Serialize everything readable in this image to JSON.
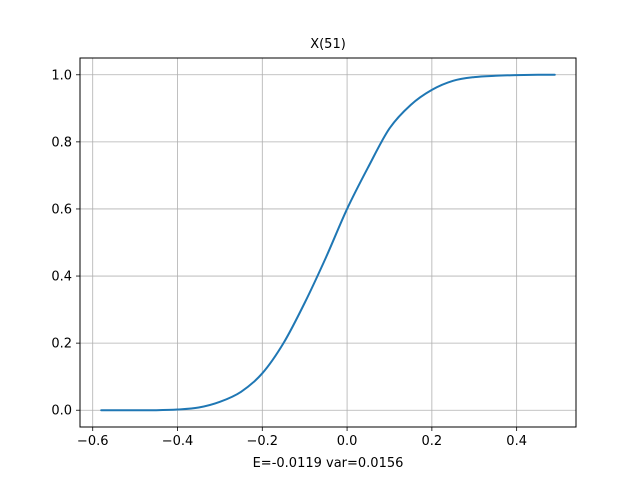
{
  "chart_data": {
    "type": "line",
    "title": "X(51)",
    "xlabel": "E=-0.0119 var=0.0156",
    "ylabel": "",
    "xlim": [
      -0.63,
      0.54
    ],
    "ylim": [
      -0.05,
      1.05
    ],
    "xticks": [
      -0.6,
      -0.4,
      -0.2,
      0.0,
      0.2,
      0.4
    ],
    "xtick_labels": [
      "−0.6",
      "−0.4",
      "−0.2",
      "0.0",
      "0.2",
      "0.4"
    ],
    "yticks": [
      0.0,
      0.2,
      0.4,
      0.6,
      0.8,
      1.0
    ],
    "ytick_labels": [
      "0.0",
      "0.2",
      "0.4",
      "0.6",
      "0.8",
      "1.0"
    ],
    "grid": true,
    "color": "#1f77b4",
    "series": [
      {
        "x": [
          -0.58,
          -0.5,
          -0.45,
          -0.4,
          -0.35,
          -0.3,
          -0.25,
          -0.2,
          -0.15,
          -0.1,
          -0.05,
          0.0,
          0.05,
          0.1,
          0.15,
          0.2,
          0.25,
          0.3,
          0.35,
          0.4,
          0.45,
          0.49
        ],
        "y": [
          0.0,
          0.0,
          0.0,
          0.002,
          0.008,
          0.025,
          0.055,
          0.11,
          0.2,
          0.32,
          0.455,
          0.6,
          0.725,
          0.84,
          0.91,
          0.955,
          0.982,
          0.993,
          0.997,
          0.999,
          1.0,
          1.0
        ]
      }
    ]
  }
}
